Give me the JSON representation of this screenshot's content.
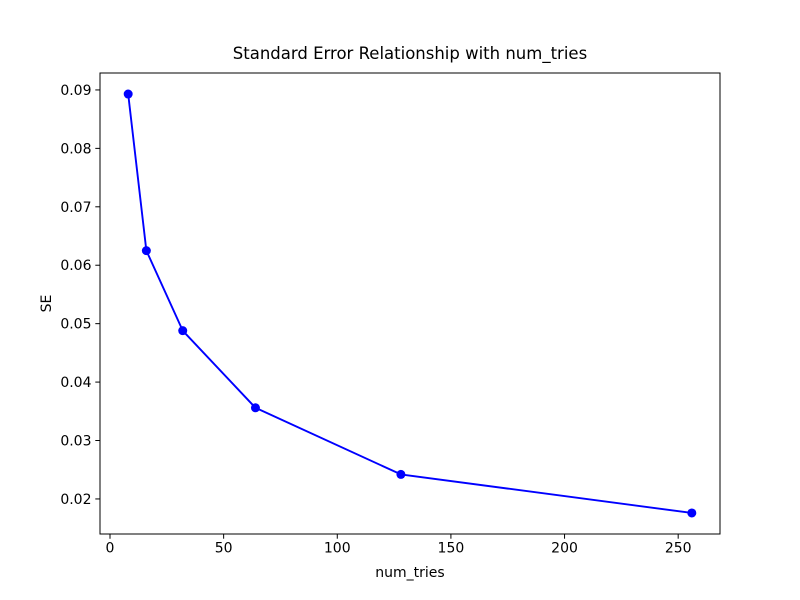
{
  "figure": {
    "background": "#ffffff"
  },
  "chart_data": {
    "type": "line",
    "title": "Standard Error Relationship with num_tries",
    "xlabel": "num_tries",
    "ylabel": "SE",
    "series": [
      {
        "x": [
          8,
          16,
          32,
          64,
          128,
          256
        ],
        "y": [
          0.0893,
          0.0625,
          0.0488,
          0.0356,
          0.0242,
          0.0176
        ],
        "color": "#0000ff",
        "marker": "circle",
        "line_style": "solid"
      }
    ],
    "xlim": [
      -4.4,
      268.4
    ],
    "ylim": [
      0.014,
      0.0929
    ],
    "xticks": [
      0,
      50,
      100,
      150,
      200,
      250
    ],
    "xtick_labels": [
      "0",
      "50",
      "100",
      "150",
      "200",
      "250"
    ],
    "yticks": [
      0.02,
      0.03,
      0.04,
      0.05,
      0.06,
      0.07,
      0.08,
      0.09
    ],
    "ytick_labels": [
      "0.02",
      "0.03",
      "0.04",
      "0.05",
      "0.06",
      "0.07",
      "0.08",
      "0.09"
    ],
    "grid": false,
    "legend": null,
    "text_color": "#000000",
    "spine_color": "#000000"
  }
}
